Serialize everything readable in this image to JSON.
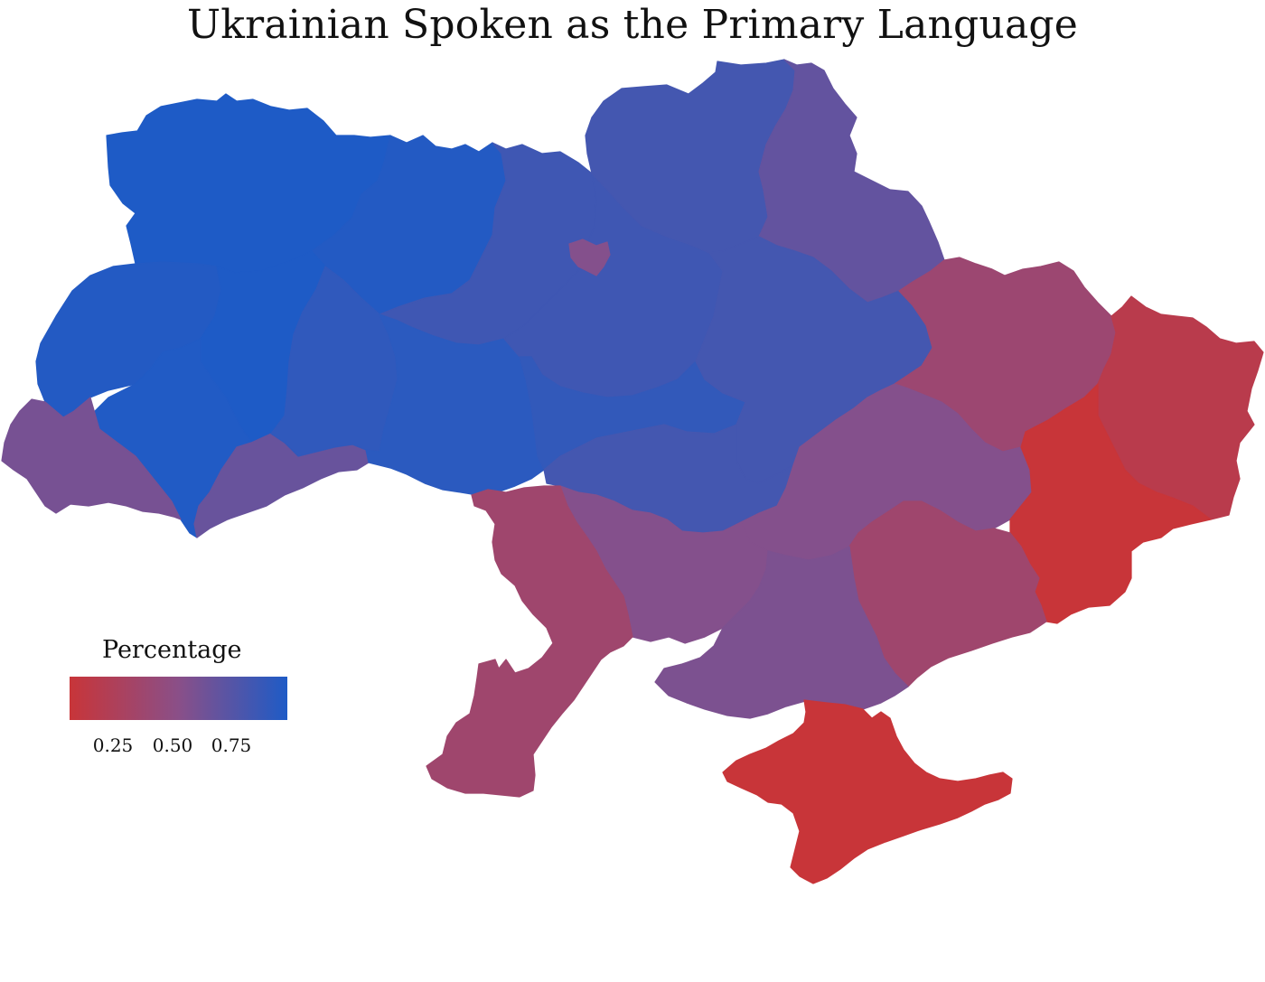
{
  "title": "Ukrainian Spoken as the Primary Language",
  "legend": {
    "title": "Percentage",
    "colors": {
      "low": "#c83539",
      "mid": "#8a4f88",
      "high": "#1e5bc6"
    },
    "ticks": [
      "0.25",
      "0.50",
      "0.75"
    ],
    "domain": [
      0.1,
      0.95
    ]
  },
  "regions": [
    {
      "id": "volyn",
      "share": 0.95
    },
    {
      "id": "rivne",
      "share": 0.93
    },
    {
      "id": "lviv",
      "share": 0.93
    },
    {
      "id": "ternopil",
      "share": 0.95
    },
    {
      "id": "ivano-frankivsk",
      "share": 0.94
    },
    {
      "id": "zakarpattia",
      "share": 0.6
    },
    {
      "id": "chernivtsi",
      "share": 0.66
    },
    {
      "id": "khmelnytskyi",
      "share": 0.88
    },
    {
      "id": "zhytomyr",
      "share": 0.82
    },
    {
      "id": "vinnytsia",
      "share": 0.9
    },
    {
      "id": "kyiv-oblast",
      "share": 0.82
    },
    {
      "id": "kyiv-city",
      "share": 0.55
    },
    {
      "id": "chernihiv",
      "share": 0.8
    },
    {
      "id": "sumy",
      "share": 0.68
    },
    {
      "id": "cherkasy",
      "share": 0.87
    },
    {
      "id": "poltava",
      "share": 0.8
    },
    {
      "id": "kirovohrad",
      "share": 0.8
    },
    {
      "id": "kharkiv",
      "share": 0.4
    },
    {
      "id": "dnipropetrovsk",
      "share": 0.55
    },
    {
      "id": "luhansk",
      "share": 0.2
    },
    {
      "id": "donetsk",
      "share": 0.1
    },
    {
      "id": "zaporizhzhia",
      "share": 0.38
    },
    {
      "id": "mykolaiv",
      "share": 0.55
    },
    {
      "id": "kherson",
      "share": 0.58
    },
    {
      "id": "odesa",
      "share": 0.38
    },
    {
      "id": "crimea",
      "share": 0.1
    }
  ]
}
